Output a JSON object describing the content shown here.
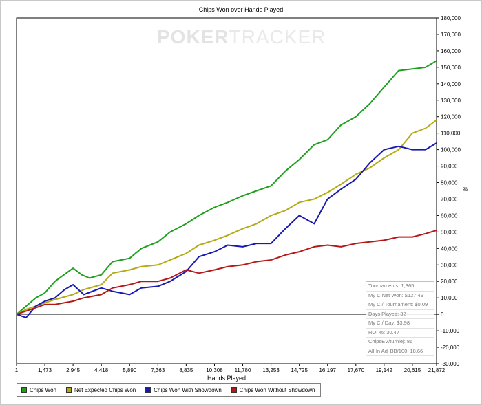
{
  "watermark": {
    "part1": "POKER",
    "part2": "TRACKER"
  },
  "chart_data": {
    "type": "line",
    "title": "Chips Won over Hands Played",
    "xlabel": "Hands Played",
    "ylabel": "%",
    "xlim": [
      1,
      21872
    ],
    "ylim": [
      -30000,
      180000
    ],
    "x_ticks": [
      "1",
      "1,473",
      "2,945",
      "4,418",
      "5,890",
      "7,363",
      "8,835",
      "10,308",
      "11,780",
      "13,253",
      "14,725",
      "16,197",
      "17,670",
      "19,142",
      "20,615",
      "21,872"
    ],
    "y_ticks": [
      "180,000",
      "170,000",
      "160,000",
      "150,000",
      "140,000",
      "130,000",
      "120,000",
      "110,000",
      "100,000",
      "90,000",
      "80,000",
      "70,000",
      "60,000",
      "50,000",
      "40,000",
      "30,000",
      "20,000",
      "10,000",
      "0",
      "-10,000",
      "-20,000",
      "-30,000"
    ],
    "legend_position": "bottom",
    "grid": false,
    "series": [
      {
        "name": "Chips Won",
        "color": "#1ea01e",
        "x": [
          1,
          500,
          1000,
          1473,
          2000,
          2945,
          3400,
          3800,
          4418,
          5000,
          5890,
          6500,
          7363,
          8000,
          8835,
          9500,
          10308,
          11000,
          11780,
          12500,
          13253,
          14000,
          14725,
          15500,
          16197,
          16900,
          17670,
          18400,
          19142,
          19900,
          20615,
          21300,
          21872
        ],
        "y": [
          0,
          5000,
          10000,
          13000,
          20000,
          28000,
          24000,
          22000,
          24000,
          32000,
          34000,
          40000,
          44000,
          50000,
          55000,
          60000,
          65000,
          68000,
          72000,
          75000,
          78000,
          87000,
          94000,
          103000,
          106000,
          115000,
          120000,
          128000,
          138000,
          148000,
          149000,
          150000,
          154000
        ]
      },
      {
        "name": "Net Expected Chips Won",
        "color": "#b4aa14",
        "x": [
          1,
          500,
          1000,
          1473,
          2000,
          2945,
          3500,
          4418,
          5000,
          5890,
          6500,
          7363,
          8000,
          8835,
          9500,
          10308,
          11000,
          11780,
          12500,
          13253,
          14000,
          14725,
          15500,
          16197,
          16900,
          17670,
          18400,
          19142,
          19900,
          20615,
          21300,
          21872
        ],
        "y": [
          0,
          3000,
          5000,
          7000,
          9000,
          12000,
          15000,
          18000,
          25000,
          27000,
          29000,
          30000,
          33000,
          37000,
          42000,
          45000,
          48000,
          52000,
          55000,
          60000,
          63000,
          68000,
          70000,
          74000,
          79000,
          85000,
          89000,
          95000,
          100000,
          110000,
          113000,
          118000
        ]
      },
      {
        "name": "Chips Won With Showdown",
        "color": "#1818b4",
        "x": [
          1,
          500,
          1000,
          1473,
          2000,
          2500,
          2945,
          3500,
          4418,
          5000,
          5890,
          6500,
          7363,
          8000,
          8835,
          9500,
          10308,
          11000,
          11780,
          12500,
          13253,
          14000,
          14725,
          15500,
          16197,
          16900,
          17670,
          18400,
          19142,
          19900,
          20615,
          21300,
          21872
        ],
        "y": [
          0,
          -2000,
          5000,
          8000,
          10000,
          15000,
          18000,
          12000,
          16000,
          14000,
          12000,
          16000,
          17000,
          20000,
          26000,
          35000,
          38000,
          42000,
          41000,
          43000,
          43000,
          52000,
          60000,
          55000,
          70000,
          76000,
          82000,
          92000,
          100000,
          102000,
          100000,
          100000,
          104000
        ]
      },
      {
        "name": "Chips Won Without Showdown",
        "color": "#b41818",
        "x": [
          1,
          500,
          1000,
          1473,
          2000,
          2945,
          3500,
          4418,
          5000,
          5890,
          6500,
          7363,
          8000,
          8835,
          9500,
          10308,
          11000,
          11780,
          12500,
          13253,
          14000,
          14725,
          15500,
          16197,
          16900,
          17670,
          18400,
          19142,
          19900,
          20615,
          21300,
          21872
        ],
        "y": [
          0,
          2000,
          4000,
          6000,
          6000,
          8000,
          10000,
          12000,
          16000,
          18000,
          20000,
          20000,
          22000,
          27000,
          25000,
          27000,
          29000,
          30000,
          32000,
          33000,
          36000,
          38000,
          41000,
          42000,
          41000,
          43000,
          44000,
          45000,
          47000,
          47000,
          49000,
          51000
        ]
      }
    ]
  },
  "stats": [
    "Tournaments: 1,365",
    "My C Net Won: $127.49",
    "My C / Tournament: $0.09",
    "Days Played: 32",
    "My C / Day: $3.98",
    "ROI %: 30.47",
    "ChipsEV/turniej: 86",
    "All-In Adj BB/100: 18.66"
  ]
}
